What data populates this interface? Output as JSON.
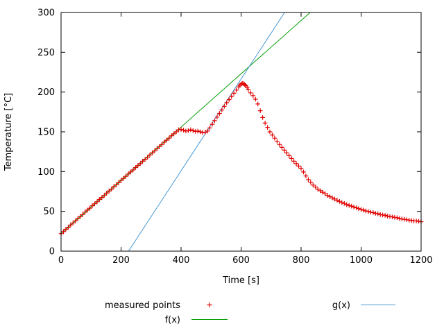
{
  "chart_data": {
    "type": "scatter",
    "title": "",
    "xlabel": "Time [s]",
    "ylabel": "Temperature [°C]",
    "xlim": [
      0,
      1200
    ],
    "ylim": [
      0,
      300
    ],
    "xticks": [
      0,
      200,
      400,
      600,
      800,
      1000,
      1200
    ],
    "yticks": [
      0,
      50,
      100,
      150,
      200,
      250,
      300
    ],
    "grid": false,
    "legend_position": "below-center",
    "colors": {
      "measured": "#e10000",
      "f": "#00a000",
      "g": "#4596d2",
      "axis": "#000000"
    },
    "series": [
      {
        "name": "measured points",
        "style": "points",
        "marker": "plus",
        "color": "#e10000",
        "points": [
          [
            0,
            22
          ],
          [
            8,
            24.5
          ],
          [
            16,
            27.5
          ],
          [
            24,
            30
          ],
          [
            32,
            33
          ],
          [
            40,
            35.5
          ],
          [
            48,
            38
          ],
          [
            56,
            41
          ],
          [
            64,
            43.5
          ],
          [
            72,
            46
          ],
          [
            80,
            49
          ],
          [
            88,
            51.5
          ],
          [
            96,
            54
          ],
          [
            104,
            57
          ],
          [
            112,
            59.5
          ],
          [
            120,
            62
          ],
          [
            128,
            65
          ],
          [
            136,
            67.5
          ],
          [
            144,
            70
          ],
          [
            152,
            73
          ],
          [
            160,
            75.5
          ],
          [
            168,
            78
          ],
          [
            176,
            81
          ],
          [
            184,
            83.5
          ],
          [
            192,
            86
          ],
          [
            200,
            89
          ],
          [
            208,
            91.5
          ],
          [
            216,
            94
          ],
          [
            224,
            97
          ],
          [
            232,
            99.5
          ],
          [
            240,
            102
          ],
          [
            248,
            105
          ],
          [
            256,
            107.5
          ],
          [
            264,
            110
          ],
          [
            272,
            113
          ],
          [
            280,
            115.5
          ],
          [
            288,
            118
          ],
          [
            296,
            121
          ],
          [
            304,
            123.5
          ],
          [
            312,
            126
          ],
          [
            320,
            129
          ],
          [
            328,
            131.5
          ],
          [
            336,
            134
          ],
          [
            344,
            137
          ],
          [
            352,
            139.5
          ],
          [
            360,
            142
          ],
          [
            368,
            145
          ],
          [
            376,
            147.5
          ],
          [
            384,
            150
          ],
          [
            392,
            152.5
          ],
          [
            400,
            153
          ],
          [
            408,
            152
          ],
          [
            416,
            151
          ],
          [
            424,
            151.5
          ],
          [
            432,
            152.5
          ],
          [
            440,
            151.5
          ],
          [
            448,
            150.5
          ],
          [
            456,
            151
          ],
          [
            464,
            150
          ],
          [
            472,
            149
          ],
          [
            480,
            149.5
          ],
          [
            488,
            151
          ],
          [
            496,
            155
          ],
          [
            504,
            159.5
          ],
          [
            512,
            164
          ],
          [
            520,
            168.5
          ],
          [
            528,
            173
          ],
          [
            536,
            177.5
          ],
          [
            544,
            182
          ],
          [
            552,
            186.5
          ],
          [
            560,
            190.5
          ],
          [
            568,
            194.5
          ],
          [
            576,
            198.5
          ],
          [
            584,
            202.5
          ],
          [
            592,
            206.5
          ],
          [
            596,
            208.5
          ],
          [
            600,
            210
          ],
          [
            604,
            211
          ],
          [
            608,
            210.5
          ],
          [
            612,
            209.5
          ],
          [
            616,
            208
          ],
          [
            620,
            206
          ],
          [
            624,
            203
          ],
          [
            632,
            199
          ],
          [
            640,
            195.5
          ],
          [
            648,
            191
          ],
          [
            656,
            185
          ],
          [
            664,
            176.5
          ],
          [
            672,
            168
          ],
          [
            680,
            161
          ],
          [
            688,
            155.5
          ],
          [
            696,
            150
          ],
          [
            704,
            146
          ],
          [
            712,
            142
          ],
          [
            720,
            138
          ],
          [
            728,
            134
          ],
          [
            736,
            130.5
          ],
          [
            744,
            127
          ],
          [
            752,
            123.5
          ],
          [
            760,
            120
          ],
          [
            768,
            116.5
          ],
          [
            776,
            113
          ],
          [
            784,
            110
          ],
          [
            792,
            107
          ],
          [
            800,
            104
          ],
          [
            808,
            99.5
          ],
          [
            816,
            94.5
          ],
          [
            824,
            90
          ],
          [
            832,
            86.5
          ],
          [
            840,
            83
          ],
          [
            848,
            80.5
          ],
          [
            856,
            78
          ],
          [
            864,
            76
          ],
          [
            872,
            74
          ],
          [
            880,
            72
          ],
          [
            888,
            70
          ],
          [
            896,
            68.5
          ],
          [
            904,
            67
          ],
          [
            912,
            65.5
          ],
          [
            920,
            64
          ],
          [
            928,
            62.5
          ],
          [
            936,
            61
          ],
          [
            944,
            60
          ],
          [
            952,
            58.5
          ],
          [
            960,
            57.5
          ],
          [
            968,
            56.5
          ],
          [
            976,
            55.5
          ],
          [
            984,
            54.5
          ],
          [
            992,
            53.5
          ],
          [
            1000,
            52.5
          ],
          [
            1008,
            51.5
          ],
          [
            1016,
            50.5
          ],
          [
            1024,
            50
          ],
          [
            1032,
            49
          ],
          [
            1040,
            48.5
          ],
          [
            1048,
            47.5
          ],
          [
            1056,
            47
          ],
          [
            1064,
            46
          ],
          [
            1072,
            45.5
          ],
          [
            1080,
            45
          ],
          [
            1088,
            44
          ],
          [
            1096,
            43.5
          ],
          [
            1104,
            43
          ],
          [
            1112,
            42.5
          ],
          [
            1120,
            42
          ],
          [
            1128,
            41
          ],
          [
            1136,
            40.5
          ],
          [
            1144,
            40
          ],
          [
            1152,
            39.5
          ],
          [
            1160,
            39
          ],
          [
            1168,
            38.5
          ],
          [
            1176,
            38
          ],
          [
            1184,
            38
          ],
          [
            1192,
            37.5
          ],
          [
            1200,
            37
          ]
        ]
      },
      {
        "name": "f(x)",
        "style": "line",
        "color": "#00a000",
        "points": [
          [
            0,
            22
          ],
          [
            830,
            300
          ]
        ]
      },
      {
        "name": "g(x)",
        "style": "line",
        "color": "#4596d2",
        "points": [
          [
            225,
            0
          ],
          [
            745,
            300
          ]
        ]
      }
    ],
    "legend_entries": [
      {
        "series": 0,
        "row": 0,
        "col": 0
      },
      {
        "series": 2,
        "row": 0,
        "col": 1
      },
      {
        "series": 1,
        "row": 1,
        "col": 0
      }
    ]
  }
}
